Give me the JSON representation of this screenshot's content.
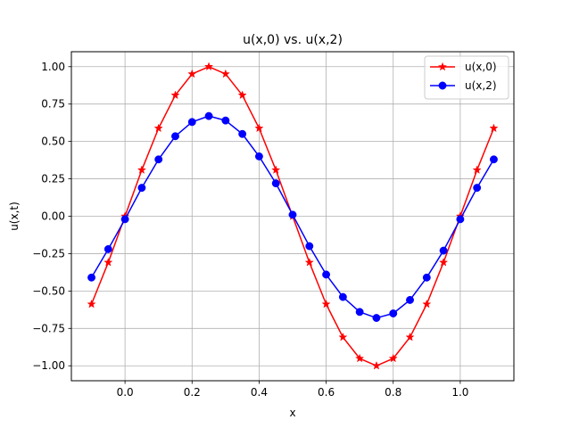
{
  "chart_data": {
    "type": "line",
    "title": "u(x,0) vs. u(x,2)",
    "xlabel": "x",
    "ylabel": "u(x,t)",
    "xlim": [
      -0.16,
      1.16
    ],
    "ylim": [
      -1.1,
      1.1
    ],
    "xticks": [
      0.0,
      0.2,
      0.4,
      0.6,
      0.8,
      1.0
    ],
    "xtick_labels": [
      "0.0",
      "0.2",
      "0.4",
      "0.6",
      "0.8",
      "1.0"
    ],
    "yticks": [
      -1.0,
      -0.75,
      -0.5,
      -0.25,
      0.0,
      0.25,
      0.5,
      0.75,
      1.0
    ],
    "ytick_labels": [
      "−1.00",
      "−0.75",
      "−0.50",
      "−0.25",
      "0.00",
      "0.25",
      "0.50",
      "0.75",
      "1.00"
    ],
    "grid": true,
    "legend_position": "top-right",
    "x": [
      -0.1,
      -0.05,
      0.0,
      0.05,
      0.1,
      0.15,
      0.2,
      0.25,
      0.3,
      0.35,
      0.4,
      0.45,
      0.5,
      0.55,
      0.6,
      0.65,
      0.7,
      0.75,
      0.8,
      0.85,
      0.9,
      0.95,
      1.0,
      1.05,
      1.1
    ],
    "series": [
      {
        "name": "u(x,0)",
        "color": "#ff0000",
        "marker": "star",
        "values": [
          -0.588,
          -0.309,
          0.0,
          0.309,
          0.588,
          0.809,
          0.951,
          1.0,
          0.951,
          0.809,
          0.588,
          0.309,
          0.0,
          -0.309,
          -0.588,
          -0.809,
          -0.951,
          -1.0,
          -0.951,
          -0.809,
          -0.588,
          -0.309,
          0.0,
          0.309,
          0.588
        ]
      },
      {
        "name": "u(x,2)",
        "color": "#0000ff",
        "marker": "circle",
        "values": [
          -0.41,
          -0.22,
          -0.02,
          0.19,
          0.38,
          0.535,
          0.63,
          0.67,
          0.64,
          0.55,
          0.4,
          0.22,
          0.01,
          -0.2,
          -0.39,
          -0.54,
          -0.64,
          -0.68,
          -0.65,
          -0.56,
          -0.41,
          -0.23,
          -0.02,
          0.19,
          0.38
        ]
      }
    ]
  }
}
